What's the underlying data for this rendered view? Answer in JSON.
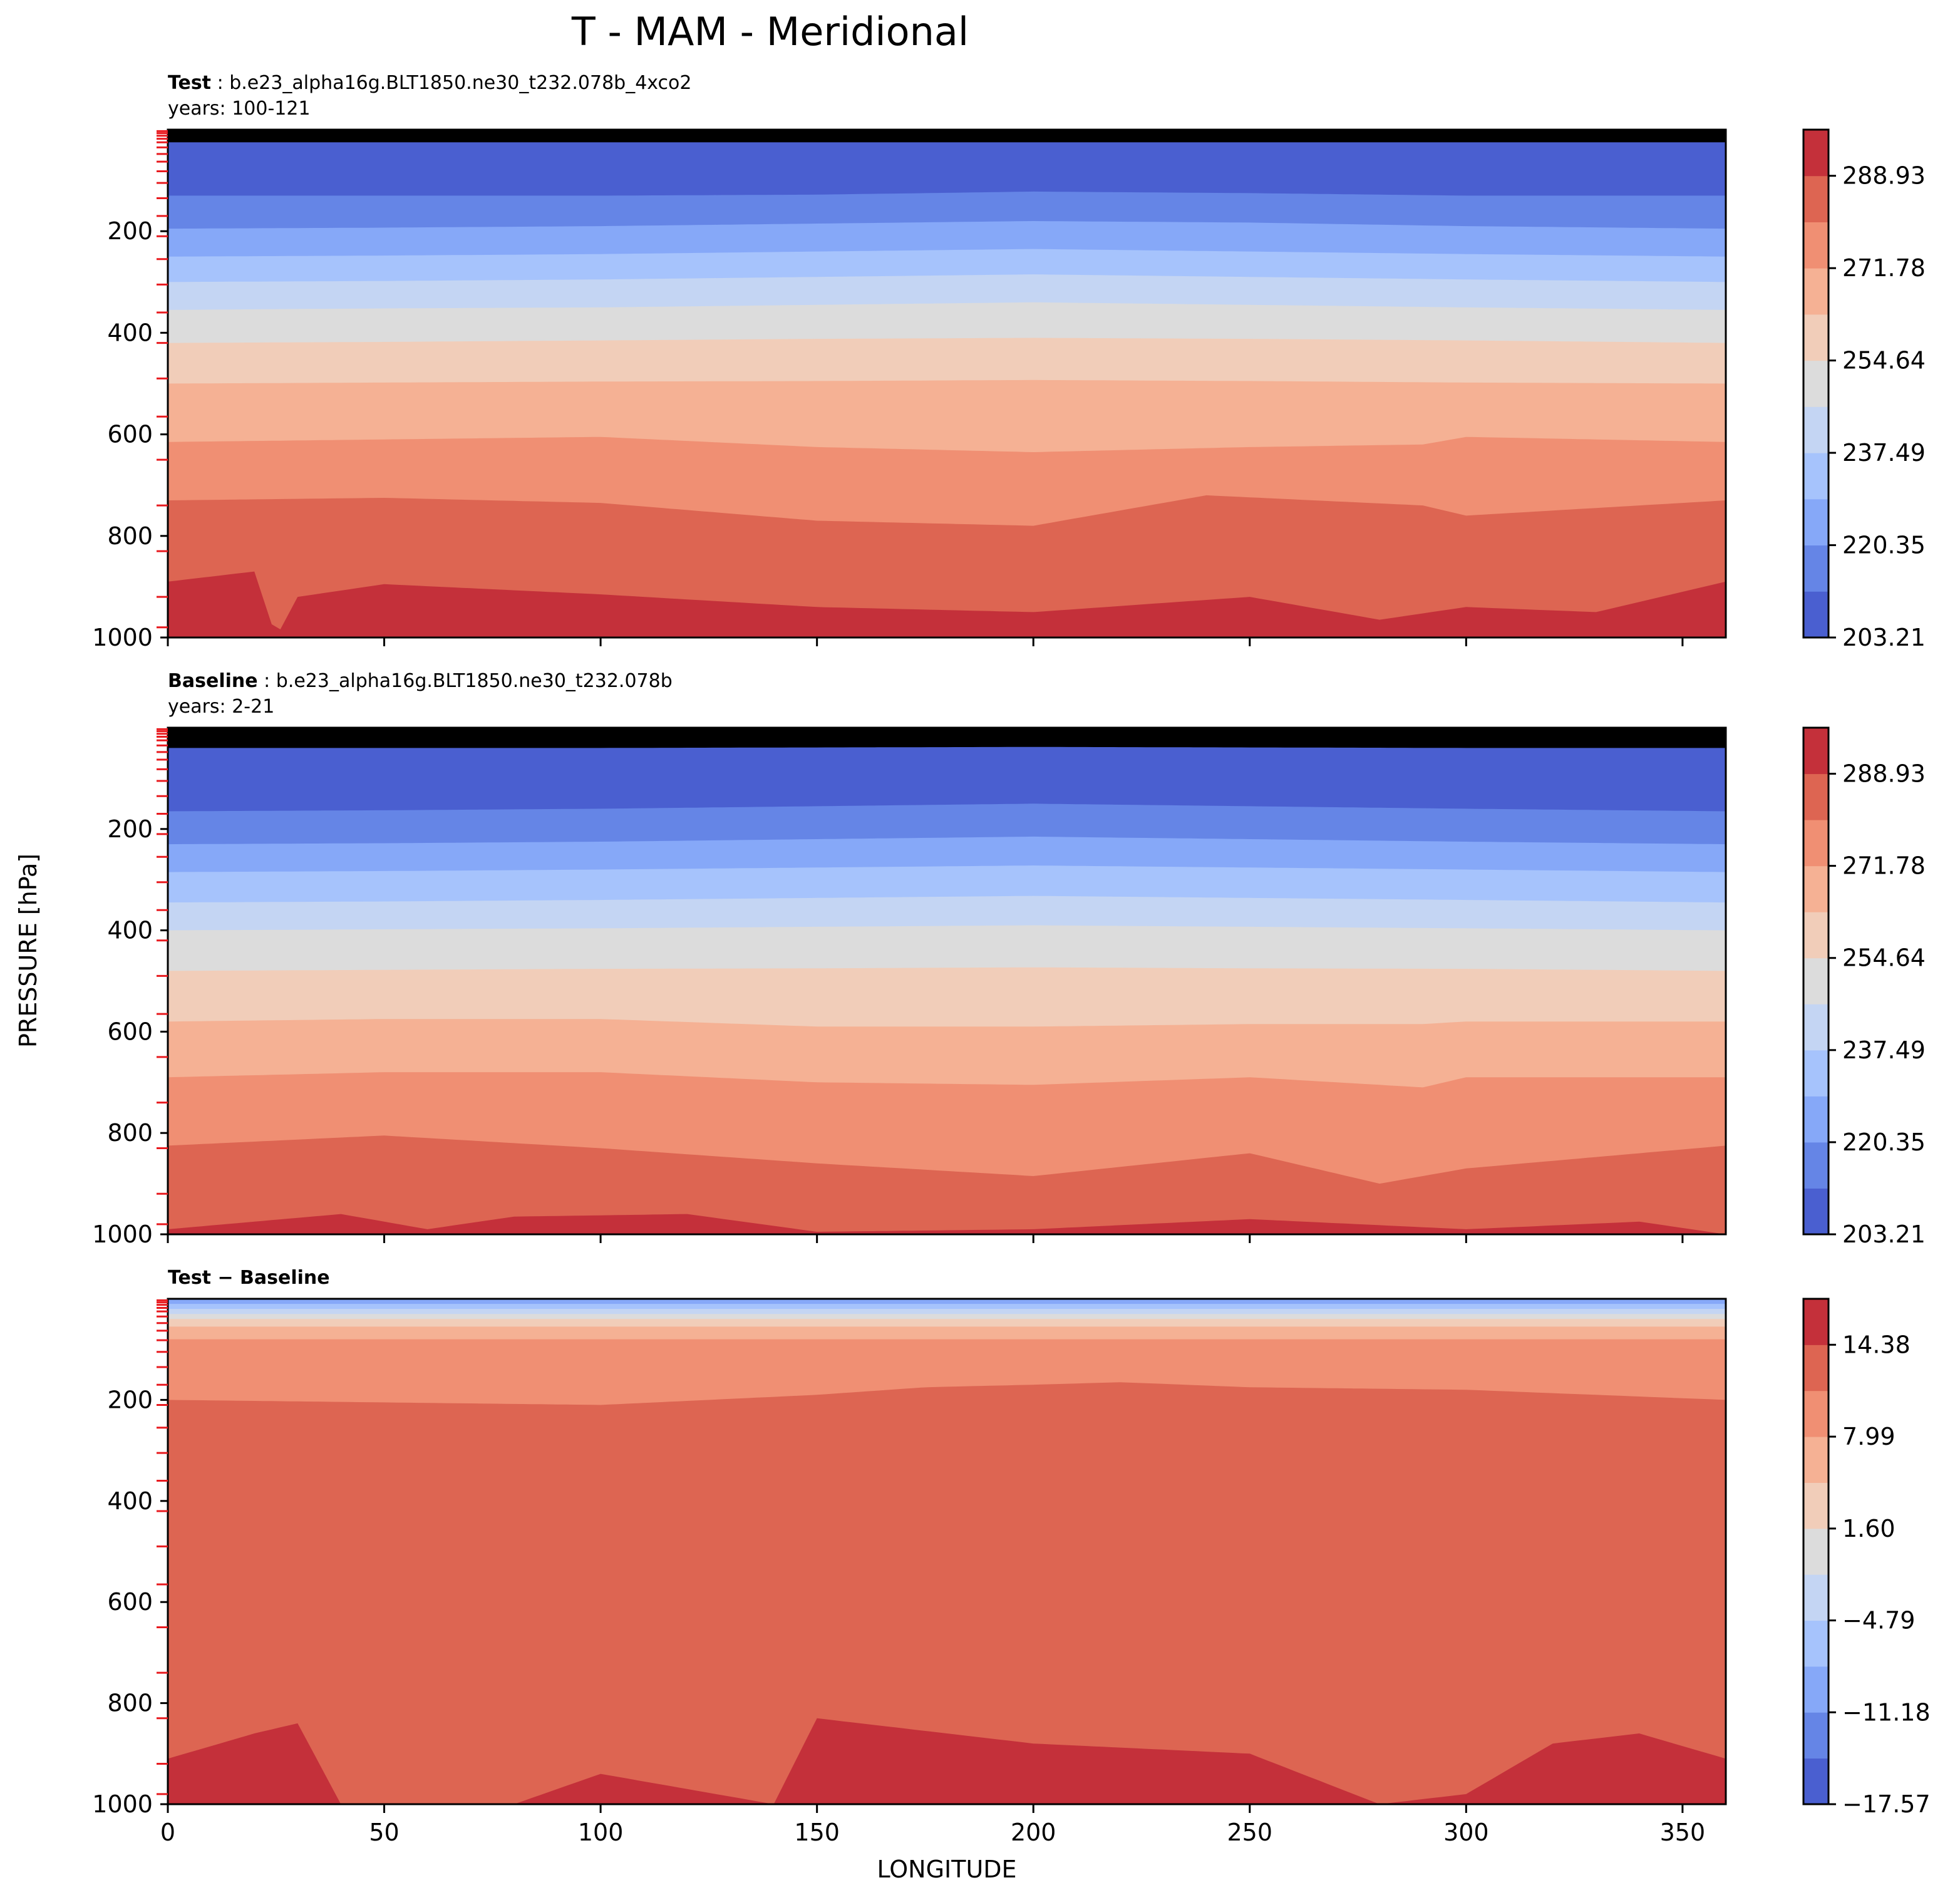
{
  "chart_data": {
    "type": "contour",
    "title": "T - MAM - Meridional",
    "xlabel": "LONGITUDE",
    "ylabel": "PRESSURE [hPa]",
    "xlim": [
      0,
      360
    ],
    "ylim": [
      1000,
      0
    ],
    "x_ticks": [
      0,
      50,
      100,
      150,
      200,
      250,
      300,
      350
    ],
    "y_ticks": [
      200,
      400,
      600,
      800,
      1000
    ],
    "panels": [
      {
        "id": "test",
        "label_bold": "Test",
        "label_rest": ": b.e23_alpha16g.BLT1850.ne30_t232.078b_4xco2",
        "years": "years: 100-121",
        "colorbar_ticks": [
          "288.93",
          "271.78",
          "254.64",
          "237.49",
          "220.35",
          "203.21"
        ],
        "levels": [
          203.21,
          211.78,
          220.35,
          228.92,
          237.49,
          246.07,
          254.64,
          263.21,
          271.78,
          280.36,
          288.93,
          297.5
        ],
        "band_bottoms_hpa": [
          {
            "x": [
              0,
              100,
              200,
              300,
              360
            ],
            "p": [
              25,
              25,
              25,
              25,
              25
            ]
          },
          {
            "x": [
              0,
              50,
              100,
              150,
              200,
              250,
              300,
              360
            ],
            "p": [
              130,
              130,
              130,
              128,
              122,
              125,
              130,
              130
            ]
          },
          {
            "x": [
              0,
              50,
              100,
              150,
              200,
              250,
              300,
              360
            ],
            "p": [
              195,
              193,
              190,
              185,
              180,
              183,
              190,
              195
            ]
          },
          {
            "x": [
              0,
              50,
              100,
              150,
              200,
              250,
              300,
              360
            ],
            "p": [
              250,
              248,
              245,
              240,
              235,
              240,
              245,
              250
            ]
          },
          {
            "x": [
              0,
              50,
              100,
              150,
              200,
              250,
              300,
              360
            ],
            "p": [
              300,
              298,
              295,
              290,
              285,
              290,
              295,
              300
            ]
          },
          {
            "x": [
              0,
              50,
              100,
              150,
              200,
              250,
              300,
              360
            ],
            "p": [
              355,
              352,
              350,
              345,
              340,
              345,
              350,
              355
            ]
          },
          {
            "x": [
              0,
              50,
              100,
              150,
              200,
              250,
              300,
              360
            ],
            "p": [
              420,
              418,
              415,
              412,
              410,
              412,
              415,
              420
            ]
          },
          {
            "x": [
              0,
              50,
              100,
              150,
              200,
              250,
              300,
              360
            ],
            "p": [
              500,
              498,
              496,
              495,
              493,
              495,
              498,
              500
            ]
          },
          {
            "x": [
              0,
              50,
              100,
              150,
              200,
              250,
              290,
              300,
              360
            ],
            "p": [
              615,
              610,
              605,
              625,
              635,
              625,
              620,
              605,
              615
            ]
          },
          {
            "x": [
              0,
              50,
              100,
              150,
              200,
              240,
              290,
              300,
              360
            ],
            "p": [
              730,
              725,
              735,
              770,
              780,
              720,
              740,
              760,
              730
            ]
          },
          {
            "x": [
              0,
              20,
              25,
              30,
              50,
              100,
              150,
              200,
              250,
              280,
              300,
              330,
              360
            ],
            "p": [
              890,
              870,
              1000,
              920,
              895,
              915,
              940,
              950,
              920,
              965,
              940,
              950,
              890
            ]
          }
        ]
      },
      {
        "id": "baseline",
        "label_bold": "Baseline",
        "label_rest": ": b.e23_alpha16g.BLT1850.ne30_t232.078b",
        "years": "years: 2-21",
        "colorbar_ticks": [
          "288.93",
          "271.78",
          "254.64",
          "237.49",
          "220.35",
          "203.21"
        ],
        "levels": [
          203.21,
          211.78,
          220.35,
          228.92,
          237.49,
          246.07,
          254.64,
          263.21,
          271.78,
          280.36,
          288.93,
          297.5
        ],
        "band_bottoms_hpa": [
          {
            "x": [
              0,
              100,
              200,
              300,
              360
            ],
            "p": [
              40,
              40,
              38,
              40,
              40
            ]
          },
          {
            "x": [
              0,
              50,
              100,
              150,
              200,
              250,
              300,
              360
            ],
            "p": [
              165,
              163,
              160,
              155,
              150,
              155,
              160,
              165
            ]
          },
          {
            "x": [
              0,
              50,
              100,
              150,
              200,
              250,
              300,
              360
            ],
            "p": [
              230,
              228,
              225,
              220,
              215,
              220,
              225,
              230
            ]
          },
          {
            "x": [
              0,
              50,
              100,
              150,
              200,
              250,
              300,
              360
            ],
            "p": [
              285,
              283,
              280,
              276,
              272,
              276,
              280,
              285
            ]
          },
          {
            "x": [
              0,
              50,
              100,
              150,
              200,
              250,
              300,
              360
            ],
            "p": [
              345,
              343,
              340,
              336,
              332,
              336,
              340,
              345
            ]
          },
          {
            "x": [
              0,
              50,
              100,
              150,
              200,
              250,
              300,
              360
            ],
            "p": [
              400,
              398,
              396,
              393,
              390,
              393,
              396,
              400
            ]
          },
          {
            "x": [
              0,
              50,
              100,
              150,
              200,
              250,
              300,
              360
            ],
            "p": [
              480,
              478,
              476,
              475,
              473,
              475,
              476,
              480
            ]
          },
          {
            "x": [
              0,
              50,
              100,
              150,
              200,
              250,
              290,
              300,
              360
            ],
            "p": [
              580,
              575,
              575,
              590,
              590,
              585,
              585,
              580,
              580
            ]
          },
          {
            "x": [
              0,
              50,
              100,
              150,
              200,
              250,
              290,
              300,
              360
            ],
            "p": [
              690,
              680,
              680,
              700,
              705,
              690,
              710,
              690,
              690
            ]
          },
          {
            "x": [
              0,
              50,
              100,
              150,
              200,
              250,
              280,
              300,
              360
            ],
            "p": [
              825,
              805,
              830,
              860,
              885,
              840,
              900,
              870,
              825
            ]
          },
          {
            "x": [
              0,
              40,
              60,
              80,
              120,
              150,
              200,
              250,
              300,
              340,
              360
            ],
            "p": [
              990,
              960,
              990,
              965,
              960,
              995,
              990,
              970,
              990,
              975,
              1000
            ]
          }
        ]
      },
      {
        "id": "diff",
        "label_bold": "Test − Baseline",
        "label_rest": "",
        "years": "",
        "colorbar_ticks": [
          "14.38",
          "7.99",
          "1.60",
          "−4.79",
          "−11.18",
          "−17.57"
        ],
        "levels": [
          -17.57,
          -14.37,
          -11.18,
          -7.98,
          -4.79,
          -1.59,
          1.6,
          4.8,
          7.99,
          11.19,
          14.38,
          17.58
        ],
        "band_bottoms_hpa": [
          {
            "x": [
              0,
              360
            ],
            "p": [
              10,
              10
            ]
          },
          {
            "x": [
              0,
              360
            ],
            "p": [
              20,
              20
            ]
          },
          {
            "x": [
              0,
              360
            ],
            "p": [
              30,
              30
            ]
          },
          {
            "x": [
              0,
              360
            ],
            "p": [
              40,
              40
            ]
          },
          {
            "x": [
              0,
              360
            ],
            "p": [
              55,
              55
            ]
          },
          {
            "x": [
              0,
              360
            ],
            "p": [
              80,
              80
            ]
          },
          {
            "x": [
              0,
              50,
              100,
              150,
              175,
              200,
              220,
              250,
              300,
              360
            ],
            "p": [
              200,
              205,
              210,
              190,
              175,
              170,
              165,
              175,
              180,
              200
            ]
          },
          {
            "x": [
              0,
              20,
              30,
              40,
              50,
              80,
              100,
              140,
              150,
              200,
              250,
              280,
              300,
              320,
              340,
              360
            ],
            "p": [
              910,
              860,
              840,
              1000,
              1000,
              1000,
              940,
              1000,
              830,
              880,
              900,
              1000,
              980,
              880,
              860,
              910
            ]
          }
        ]
      }
    ]
  }
}
